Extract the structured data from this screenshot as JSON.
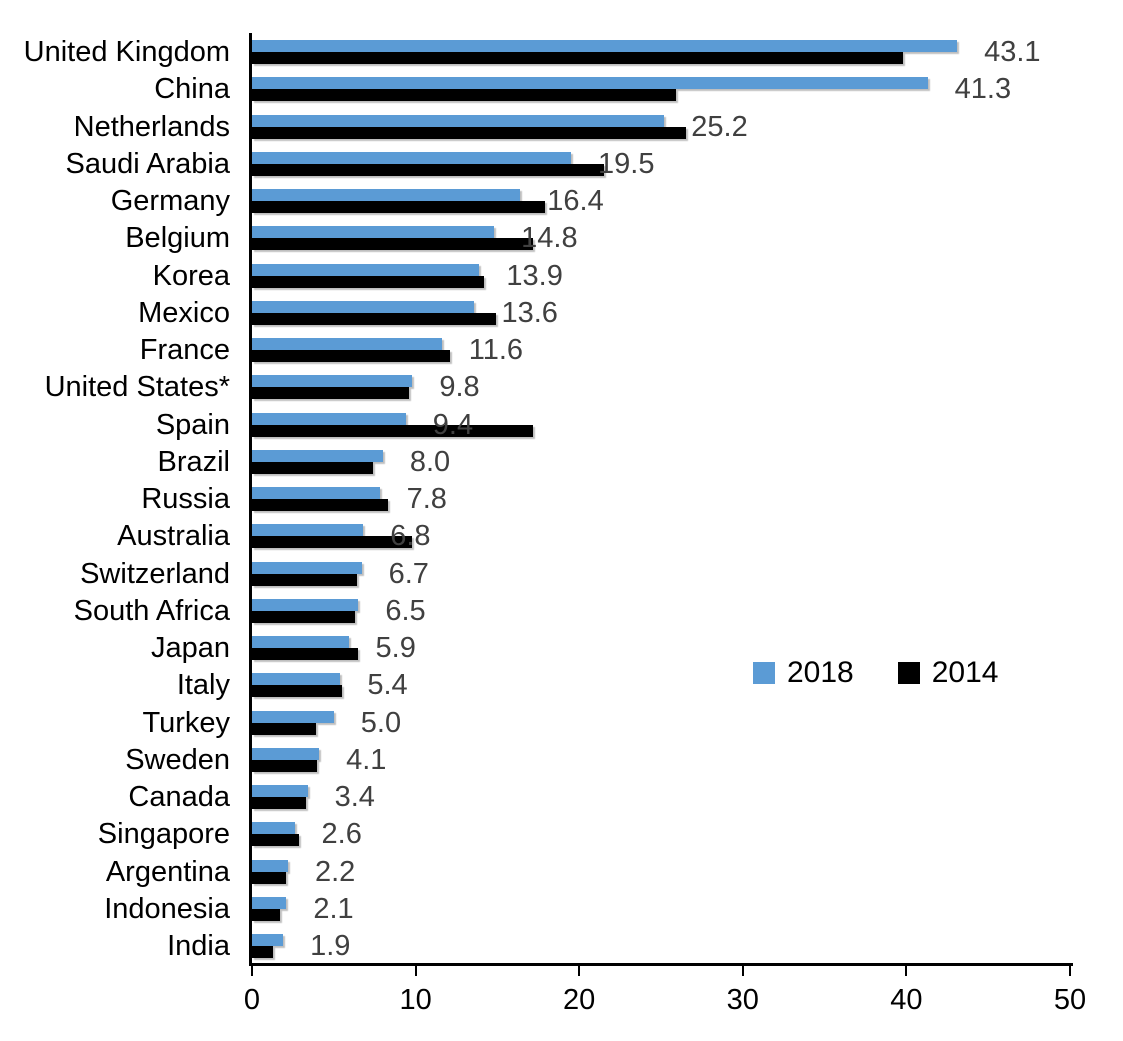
{
  "chart_data": {
    "type": "bar",
    "orientation": "horizontal",
    "title": "",
    "xlabel": "",
    "ylabel": "",
    "xlim": [
      0,
      50
    ],
    "x_ticks": [
      0,
      10,
      20,
      30,
      40,
      50
    ],
    "grid": false,
    "legend_position": "middle-right",
    "categories": [
      "United Kingdom",
      "China",
      "Netherlands",
      "Saudi Arabia",
      "Germany",
      "Belgium",
      "Korea",
      "Mexico",
      "France",
      "United States*",
      "Spain",
      "Brazil",
      "Russia",
      "Australia",
      "Switzerland",
      "South Africa",
      "Japan",
      "Italy",
      "Turkey",
      "Sweden",
      "Canada",
      "Singapore",
      "Argentina",
      "Indonesia",
      "India"
    ],
    "series": [
      {
        "name": "2018",
        "color": "#5B9BD5",
        "values": [
          43.1,
          41.3,
          25.2,
          19.5,
          16.4,
          14.8,
          13.9,
          13.6,
          11.6,
          9.8,
          9.4,
          8.0,
          7.8,
          6.8,
          6.7,
          6.5,
          5.9,
          5.4,
          5.0,
          4.1,
          3.4,
          2.6,
          2.2,
          2.1,
          1.9
        ],
        "data_labels": [
          "43.1",
          "41.3",
          "25.2",
          "19.5",
          "16.4",
          "14.8",
          "13.9",
          "13.6",
          "11.6",
          "9.8",
          "9.4",
          "8.0",
          "7.8",
          "6.8",
          "6.7",
          "6.5",
          "5.9",
          "5.4",
          "5.0",
          "4.1",
          "3.4",
          "2.6",
          "2.2",
          "2.1",
          "1.9"
        ]
      },
      {
        "name": "2014",
        "color": "#000000",
        "values": [
          39.8,
          25.9,
          26.5,
          21.5,
          17.9,
          17.2,
          14.2,
          14.9,
          12.1,
          9.6,
          17.2,
          7.4,
          8.3,
          9.8,
          6.4,
          6.3,
          6.5,
          5.5,
          3.9,
          4.0,
          3.3,
          2.9,
          2.1,
          1.7,
          1.3
        ],
        "estimated_from_bar_lengths": true
      }
    ]
  },
  "legend": {
    "items": [
      {
        "label": "2018",
        "color": "#5B9BD5"
      },
      {
        "label": "2014",
        "color": "#000000"
      }
    ]
  },
  "colors": {
    "series_2018": "#5B9BD5",
    "series_2014": "#000000",
    "data_label_text": "#404040",
    "axis_text": "#000000"
  }
}
